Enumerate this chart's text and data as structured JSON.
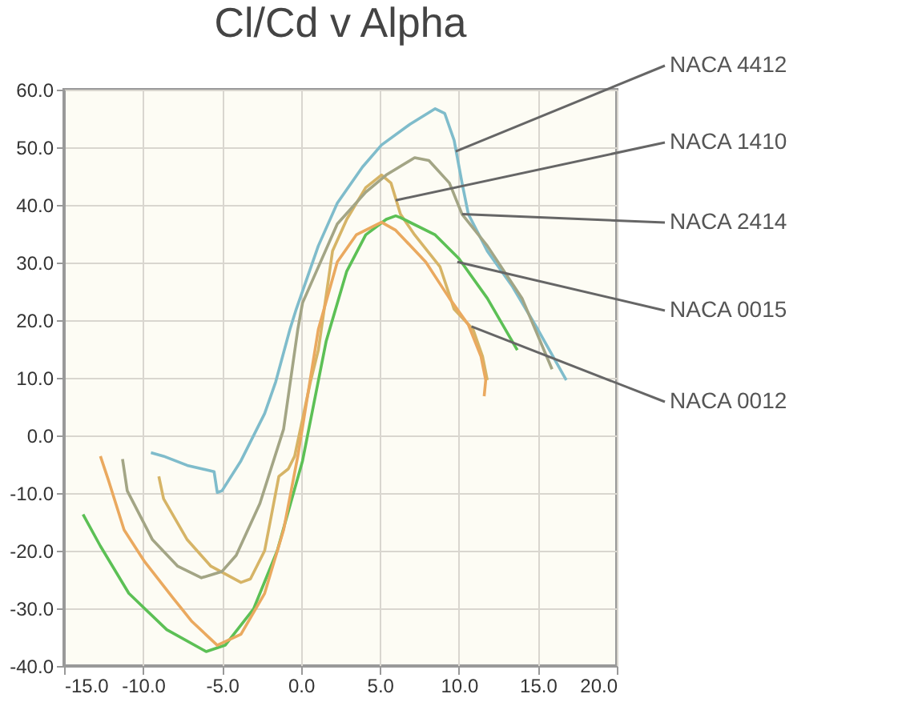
{
  "chart_data": {
    "type": "line",
    "title": "Cl/Cd v Alpha",
    "xlim": [
      -15,
      20
    ],
    "xticks": [
      {
        "value": -15,
        "label": "-15.0"
      },
      {
        "value": -10,
        "label": "-10.0"
      },
      {
        "value": -5,
        "label": "-5.0"
      },
      {
        "value": 0,
        "label": "0.0"
      },
      {
        "value": 5,
        "label": "5.0"
      },
      {
        "value": 10,
        "label": "10.0"
      },
      {
        "value": 15,
        "label": "15.0"
      },
      {
        "value": 20,
        "label": "20.0"
      }
    ],
    "ylim": [
      -40,
      60
    ],
    "yticks": [
      {
        "value": -40,
        "label": "-40.0"
      },
      {
        "value": -30,
        "label": "-30.0"
      },
      {
        "value": -20,
        "label": "-20.0"
      },
      {
        "value": -10,
        "label": "-10.0"
      },
      {
        "value": 0,
        "label": "0.0"
      },
      {
        "value": 10,
        "label": "10.0"
      },
      {
        "value": 20,
        "label": "20.0"
      },
      {
        "value": 30,
        "label": "30.0"
      },
      {
        "value": 40,
        "label": "40.0"
      },
      {
        "value": 50,
        "label": "50.0"
      },
      {
        "value": 60,
        "label": "60.0"
      }
    ],
    "grid": true,
    "line_style": "solid",
    "marker": "none",
    "series": [
      {
        "color": "#7fbccb",
        "x": [
          -9.5,
          -8.7,
          -7.2,
          -5.5,
          -5.3,
          -5.0,
          -3.8,
          -2.3,
          -1.6,
          -0.7,
          -0.3,
          1.1,
          2.3,
          3.9,
          5.1,
          6.9,
          8.5,
          9.1,
          9.7,
          10.2,
          10.6,
          11.8,
          13.4,
          15.0,
          16.8
        ],
        "values": [
          -3,
          -3.6,
          -5.2,
          -6.3,
          -9.9,
          -9.6,
          -4.4,
          3.8,
          9.3,
          18.4,
          21.9,
          32.9,
          40.3,
          46.6,
          50.4,
          54,
          56.7,
          55.9,
          51.2,
          43.8,
          38.4,
          32,
          25.8,
          18.4,
          9.6
        ]
      },
      {
        "color": "#d6b466",
        "x": [
          -9.0,
          -8.7,
          -7.2,
          -5.7,
          -3.8,
          -3.2,
          -2.3,
          -1.4,
          -0.8,
          -0.4,
          0.6,
          1.1,
          2.0,
          2.9,
          4.1,
          5.1,
          5.7,
          6.3,
          7.2,
          8.8,
          9.7,
          10.9,
          11.5,
          11.8
        ],
        "values": [
          -7.1,
          -11,
          -18.1,
          -22.7,
          -25.5,
          -24.9,
          -20,
          -7.1,
          -5.8,
          -3.6,
          9.3,
          14.8,
          32,
          37.5,
          43,
          45.2,
          43.8,
          38.4,
          34.8,
          29.3,
          21.9,
          18.4,
          13.7,
          9.6
        ]
      },
      {
        "color": "#a3a585",
        "x": [
          -11.3,
          -11.0,
          -9.4,
          -7.8,
          -6.3,
          -5.0,
          -4.1,
          -2.6,
          -1.1,
          -0.2,
          0.1,
          2.3,
          4.1,
          5.4,
          7.2,
          8.1,
          9.4,
          10.2,
          11.8,
          14.0,
          15.9
        ],
        "values": [
          -4.1,
          -9.6,
          -18.1,
          -22.7,
          -24.7,
          -23.6,
          -20.8,
          -11.8,
          1.1,
          18.4,
          23,
          36.7,
          42.2,
          45.2,
          48.2,
          47.7,
          43.8,
          38.4,
          32.9,
          23.8,
          11.5
        ]
      },
      {
        "color": "#5cc055",
        "x": [
          -13.8,
          -12.7,
          -10.9,
          -8.5,
          -6.0,
          -4.8,
          -3.0,
          -1.5,
          0.1,
          1.6,
          2.9,
          4.1,
          5.4,
          6.0,
          6.3,
          8.5,
          10.0,
          11.8,
          13.7
        ],
        "values": [
          -13.7,
          -19.2,
          -27.4,
          -33.7,
          -37.5,
          -36.4,
          -30.1,
          -20,
          -4.4,
          16.4,
          28.5,
          34.8,
          37.5,
          38.1,
          37.8,
          34.8,
          30.7,
          23.8,
          14.8
        ]
      },
      {
        "color": "#eaa95f",
        "x": [
          -12.7,
          -12.2,
          -11.2,
          -9.9,
          -8.1,
          -6.9,
          -5.3,
          -3.8,
          -2.3,
          -1.1,
          -0.2,
          1.1,
          2.3,
          3.5,
          5.1,
          6.0,
          7.9,
          9.4,
          10.6,
          11.4,
          11.7,
          11.6
        ],
        "values": [
          -3.6,
          -7.7,
          -16.4,
          -21.9,
          -28.2,
          -32.3,
          -36.4,
          -34.5,
          -27.4,
          -16.4,
          -3.6,
          18.4,
          30.1,
          34.8,
          37,
          35.6,
          30.1,
          23.8,
          19.2,
          13.7,
          9.6,
          6.8
        ]
      }
    ],
    "annotations": [
      {
        "text": "NACA 4412",
        "x": 9.8,
        "y": 49.3
      },
      {
        "text": "NACA 1410",
        "x": 6.0,
        "y": 40.8
      },
      {
        "text": "NACA 2414",
        "x": 10.2,
        "y": 38.4
      },
      {
        "text": "NACA 0015",
        "x": 9.9,
        "y": 30.1
      },
      {
        "text": "NACA 0012",
        "x": 10.8,
        "y": 18.9
      }
    ]
  }
}
